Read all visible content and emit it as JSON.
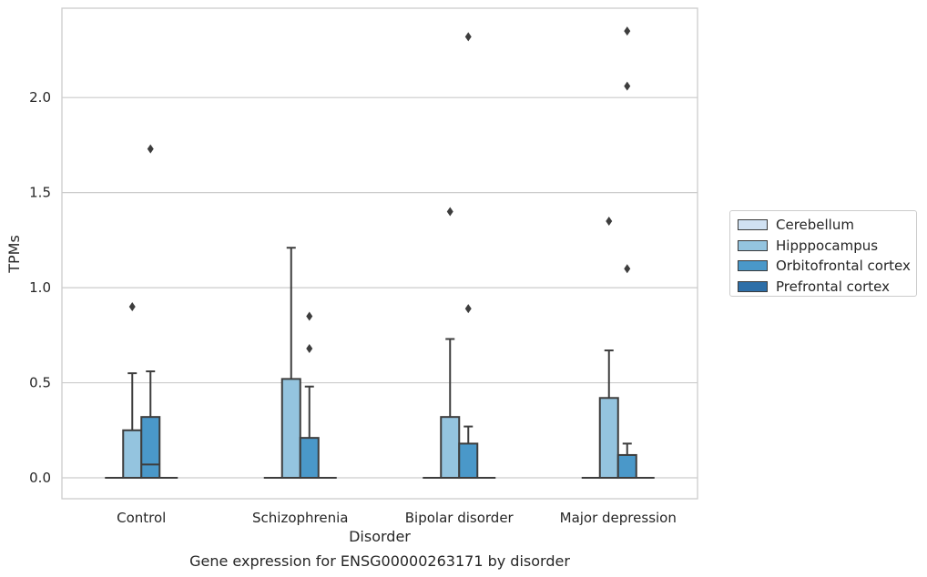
{
  "chart_data": {
    "type": "boxplot",
    "title": "",
    "caption": "Gene expression for ENSG00000263171 by disorder",
    "xlabel": "Disorder",
    "ylabel": "TPMs",
    "ylim": [
      -0.11,
      2.47
    ],
    "yticks": [
      "0.0",
      "0.5",
      "1.0",
      "1.5",
      "2.0"
    ],
    "ytick_values": [
      0.0,
      0.5,
      1.0,
      1.5,
      2.0
    ],
    "grid": "horizontal",
    "legend_position": "right",
    "categories": [
      "Control",
      "Schizophrenia",
      "Bipolar disorder",
      "Major depression"
    ],
    "series": [
      {
        "name": "Cerebellum",
        "color": "#d0e1f2",
        "boxes": [
          {
            "min": 0,
            "q1": 0,
            "median": 0,
            "q3": 0,
            "max": 0,
            "outliers": []
          },
          {
            "min": 0,
            "q1": 0,
            "median": 0,
            "q3": 0,
            "max": 0,
            "outliers": []
          },
          {
            "min": 0,
            "q1": 0,
            "median": 0,
            "q3": 0,
            "max": 0,
            "outliers": []
          },
          {
            "min": 0,
            "q1": 0,
            "median": 0,
            "q3": 0,
            "max": 0,
            "outliers": []
          }
        ]
      },
      {
        "name": "Hipppocampus",
        "color": "#94c4df",
        "boxes": [
          {
            "min": 0,
            "q1": 0,
            "median": 0,
            "q3": 0.25,
            "max": 0.55,
            "outliers": [
              0.9
            ]
          },
          {
            "min": 0,
            "q1": 0,
            "median": 0,
            "q3": 0.52,
            "max": 1.21,
            "outliers": []
          },
          {
            "min": 0,
            "q1": 0,
            "median": 0,
            "q3": 0.32,
            "max": 0.73,
            "outliers": [
              1.4
            ]
          },
          {
            "min": 0,
            "q1": 0,
            "median": 0,
            "q3": 0.42,
            "max": 0.67,
            "outliers": [
              1.35
            ]
          }
        ]
      },
      {
        "name": "Orbitofrontal cortex",
        "color": "#4a98c9",
        "boxes": [
          {
            "min": 0,
            "q1": 0,
            "median": 0.07,
            "q3": 0.32,
            "max": 0.56,
            "outliers": [
              1.73
            ]
          },
          {
            "min": 0,
            "q1": 0,
            "median": 0,
            "q3": 0.21,
            "max": 0.48,
            "outliers": [
              0.68,
              0.85
            ]
          },
          {
            "min": 0,
            "q1": 0,
            "median": 0,
            "q3": 0.18,
            "max": 0.27,
            "outliers": [
              0.89,
              2.32
            ]
          },
          {
            "min": 0,
            "q1": 0,
            "median": 0,
            "q3": 0.12,
            "max": 0.18,
            "outliers": [
              1.1,
              2.06,
              2.35
            ]
          }
        ]
      },
      {
        "name": "Prefrontal cortex",
        "color": "#2e6fa8",
        "boxes": [
          {
            "min": 0,
            "q1": 0,
            "median": 0,
            "q3": 0,
            "max": 0,
            "outliers": []
          },
          {
            "min": 0,
            "q1": 0,
            "median": 0,
            "q3": 0,
            "max": 0,
            "outliers": []
          },
          {
            "min": 0,
            "q1": 0,
            "median": 0,
            "q3": 0,
            "max": 0,
            "outliers": []
          },
          {
            "min": 0,
            "q1": 0,
            "median": 0,
            "q3": 0,
            "max": 0,
            "outliers": []
          }
        ]
      }
    ]
  }
}
